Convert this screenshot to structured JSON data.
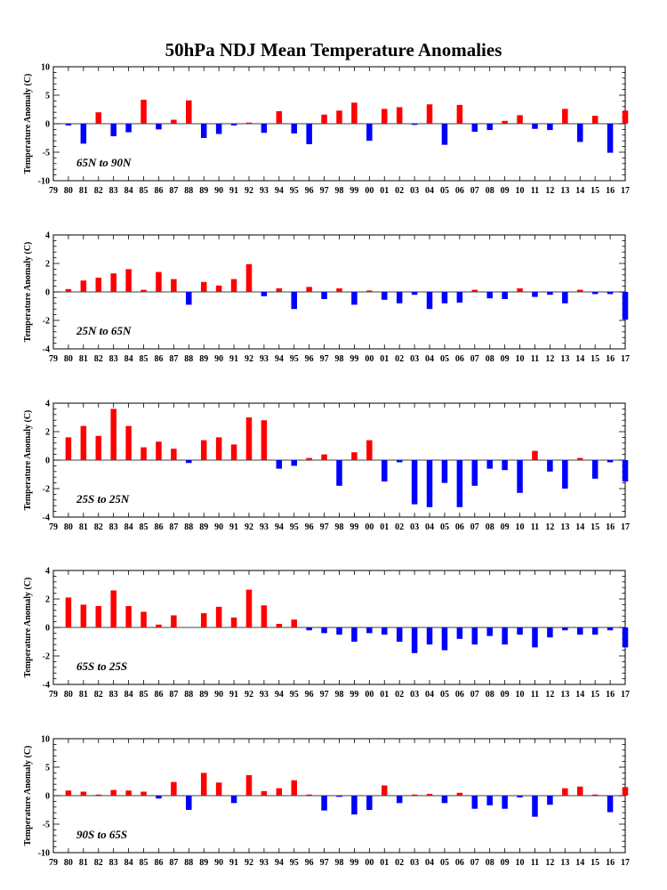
{
  "page": {
    "title": "50hPa NDJ Mean Temperature Anomalies"
  },
  "chart_data": [
    {
      "type": "bar",
      "label": "65N to 90N",
      "ylabel": "Temperature Anomaly (C)",
      "ylim": [
        -10,
        10
      ],
      "yticks": [
        -10,
        -5,
        0,
        5,
        10
      ],
      "x_tick_labels": [
        "79",
        "80",
        "81",
        "82",
        "83",
        "84",
        "85",
        "86",
        "87",
        "88",
        "89",
        "90",
        "91",
        "92",
        "93",
        "94",
        "95",
        "96",
        "97",
        "98",
        "99",
        "00",
        "01",
        "02",
        "03",
        "04",
        "05",
        "06",
        "07",
        "08",
        "09",
        "10",
        "11",
        "12",
        "13",
        "14",
        "15",
        "16",
        "17"
      ],
      "categories": [
        "80",
        "81",
        "82",
        "83",
        "84",
        "85",
        "86",
        "87",
        "88",
        "89",
        "90",
        "91",
        "92",
        "93",
        "94",
        "95",
        "96",
        "97",
        "98",
        "99",
        "00",
        "01",
        "02",
        "03",
        "04",
        "05",
        "06",
        "07",
        "08",
        "09",
        "10",
        "11",
        "12",
        "13",
        "14",
        "15",
        "16",
        "17"
      ],
      "values": [
        -0.3,
        -3.5,
        2.0,
        -2.2,
        -1.5,
        4.2,
        -1.0,
        0.7,
        4.1,
        -2.5,
        -1.8,
        -0.3,
        0.2,
        -1.6,
        2.2,
        -1.7,
        -3.6,
        1.6,
        2.3,
        3.7,
        -3.0,
        2.6,
        2.9,
        -0.2,
        3.4,
        -3.7,
        3.3,
        -1.4,
        -1.1,
        0.5,
        1.5,
        -0.9,
        -1.1,
        2.6,
        -3.2,
        1.4,
        -5.1,
        2.3
      ],
      "positive_color": "#ff0000",
      "negative_color": "#0000ff",
      "grid": false
    },
    {
      "type": "bar",
      "label": "25N to 65N",
      "ylabel": "Temperature Anomaly (C)",
      "ylim": [
        -4,
        4
      ],
      "yticks": [
        -4,
        -2,
        0,
        2,
        4
      ],
      "x_tick_labels": [
        "79",
        "80",
        "81",
        "82",
        "83",
        "84",
        "85",
        "86",
        "87",
        "88",
        "89",
        "90",
        "91",
        "92",
        "93",
        "94",
        "95",
        "96",
        "97",
        "98",
        "99",
        "00",
        "01",
        "02",
        "03",
        "04",
        "05",
        "06",
        "07",
        "08",
        "09",
        "10",
        "11",
        "12",
        "13",
        "14",
        "15",
        "16",
        "17"
      ],
      "categories": [
        "80",
        "81",
        "82",
        "83",
        "84",
        "85",
        "86",
        "87",
        "88",
        "89",
        "90",
        "91",
        "92",
        "93",
        "94",
        "95",
        "96",
        "97",
        "98",
        "99",
        "00",
        "01",
        "02",
        "03",
        "04",
        "05",
        "06",
        "07",
        "08",
        "09",
        "10",
        "11",
        "12",
        "13",
        "14",
        "15",
        "16",
        "17"
      ],
      "values": [
        0.2,
        0.8,
        1.0,
        1.3,
        1.6,
        0.15,
        1.4,
        0.9,
        -0.9,
        0.7,
        0.45,
        0.9,
        1.95,
        -0.3,
        0.25,
        -1.2,
        0.35,
        -0.5,
        0.25,
        -0.9,
        0.1,
        -0.55,
        -0.8,
        -0.2,
        -1.2,
        -0.8,
        -0.75,
        0.15,
        -0.45,
        -0.5,
        0.25,
        -0.35,
        -0.2,
        -0.8,
        0.15,
        -0.15,
        -0.15,
        -1.95
      ],
      "positive_color": "#ff0000",
      "negative_color": "#0000ff",
      "grid": false
    },
    {
      "type": "bar",
      "label": "25S to 25N",
      "ylabel": "Temperature Anomaly (C)",
      "ylim": [
        -4,
        4
      ],
      "yticks": [
        -4,
        -2,
        0,
        2,
        4
      ],
      "x_tick_labels": [
        "79",
        "80",
        "81",
        "82",
        "83",
        "84",
        "85",
        "86",
        "87",
        "88",
        "89",
        "90",
        "91",
        "92",
        "93",
        "94",
        "95",
        "96",
        "97",
        "98",
        "99",
        "00",
        "01",
        "02",
        "03",
        "04",
        "05",
        "06",
        "07",
        "08",
        "09",
        "10",
        "11",
        "12",
        "13",
        "14",
        "15",
        "16",
        "17"
      ],
      "categories": [
        "80",
        "81",
        "82",
        "83",
        "84",
        "85",
        "86",
        "87",
        "88",
        "89",
        "90",
        "91",
        "92",
        "93",
        "94",
        "95",
        "96",
        "97",
        "98",
        "99",
        "00",
        "01",
        "02",
        "03",
        "04",
        "05",
        "06",
        "07",
        "08",
        "09",
        "10",
        "11",
        "12",
        "13",
        "14",
        "15",
        "16",
        "17"
      ],
      "values": [
        1.6,
        2.4,
        1.7,
        3.6,
        2.4,
        0.9,
        1.3,
        0.8,
        -0.2,
        1.4,
        1.6,
        1.1,
        3.0,
        2.8,
        -0.6,
        -0.4,
        0.15,
        0.4,
        -1.8,
        0.55,
        1.4,
        -1.5,
        -0.15,
        -3.1,
        -3.3,
        -1.6,
        -3.3,
        -1.8,
        -0.6,
        -0.7,
        -2.3,
        0.65,
        -0.8,
        -2.0,
        0.15,
        -1.3,
        -0.15,
        -1.5
      ],
      "positive_color": "#ff0000",
      "negative_color": "#0000ff",
      "grid": false
    },
    {
      "type": "bar",
      "label": "65S to 25S",
      "ylabel": "Temperature Anomaly (C)",
      "ylim": [
        -4,
        4
      ],
      "yticks": [
        -4,
        -2,
        0,
        2,
        4
      ],
      "x_tick_labels": [
        "79",
        "80",
        "81",
        "82",
        "83",
        "84",
        "85",
        "86",
        "87",
        "88",
        "89",
        "90",
        "91",
        "92",
        "93",
        "94",
        "95",
        "96",
        "97",
        "98",
        "99",
        "00",
        "01",
        "02",
        "03",
        "04",
        "05",
        "06",
        "07",
        "08",
        "09",
        "10",
        "11",
        "12",
        "13",
        "14",
        "15",
        "16",
        "17"
      ],
      "categories": [
        "80",
        "81",
        "82",
        "83",
        "84",
        "85",
        "86",
        "87",
        "88",
        "89",
        "90",
        "91",
        "92",
        "93",
        "94",
        "95",
        "96",
        "97",
        "98",
        "99",
        "00",
        "01",
        "02",
        "03",
        "04",
        "05",
        "06",
        "07",
        "08",
        "09",
        "10",
        "11",
        "12",
        "13",
        "14",
        "15",
        "16",
        "17"
      ],
      "values": [
        2.1,
        1.6,
        1.5,
        2.6,
        1.5,
        1.1,
        0.2,
        0.85,
        0.0,
        1.0,
        1.45,
        0.7,
        2.65,
        1.55,
        0.25,
        0.55,
        -0.2,
        -0.4,
        -0.5,
        -1.0,
        -0.4,
        -0.5,
        -1.0,
        -1.8,
        -1.2,
        -1.6,
        -0.8,
        -1.2,
        -0.6,
        -1.2,
        -0.5,
        -1.4,
        -0.7,
        -0.2,
        -0.5,
        -0.5,
        -0.2,
        -1.4
      ],
      "positive_color": "#ff0000",
      "negative_color": "#0000ff",
      "grid": false
    },
    {
      "type": "bar",
      "label": "90S to 65S",
      "ylabel": "Temperature Anomaly (C)",
      "ylim": [
        -10,
        10
      ],
      "yticks": [
        -10,
        -5,
        0,
        5,
        10
      ],
      "x_tick_labels": [
        "79",
        "80",
        "81",
        "82",
        "83",
        "84",
        "85",
        "86",
        "87",
        "88",
        "89",
        "90",
        "91",
        "92",
        "93",
        "94",
        "95",
        "96",
        "97",
        "98",
        "99",
        "00",
        "01",
        "02",
        "03",
        "04",
        "05",
        "06",
        "07",
        "08",
        "09",
        "10",
        "11",
        "12",
        "13",
        "14",
        "15",
        "16",
        "17"
      ],
      "categories": [
        "80",
        "81",
        "82",
        "83",
        "84",
        "85",
        "86",
        "87",
        "88",
        "89",
        "90",
        "91",
        "92",
        "93",
        "94",
        "95",
        "96",
        "97",
        "98",
        "99",
        "00",
        "01",
        "02",
        "03",
        "04",
        "05",
        "06",
        "07",
        "08",
        "09",
        "10",
        "11",
        "12",
        "13",
        "14",
        "15",
        "16",
        "17"
      ],
      "values": [
        0.9,
        0.7,
        0.2,
        1.0,
        0.9,
        0.7,
        -0.5,
        2.4,
        -2.5,
        4.0,
        2.3,
        -1.3,
        3.6,
        0.8,
        1.3,
        2.7,
        0.2,
        -2.6,
        -0.2,
        -3.3,
        -2.5,
        1.8,
        -1.3,
        0.2,
        0.3,
        -1.3,
        0.5,
        -2.3,
        -1.7,
        -2.3,
        -0.3,
        -3.7,
        -1.6,
        1.3,
        1.6,
        0.2,
        -2.9,
        1.5
      ],
      "positive_color": "#ff0000",
      "negative_color": "#0000ff",
      "grid": false
    }
  ]
}
